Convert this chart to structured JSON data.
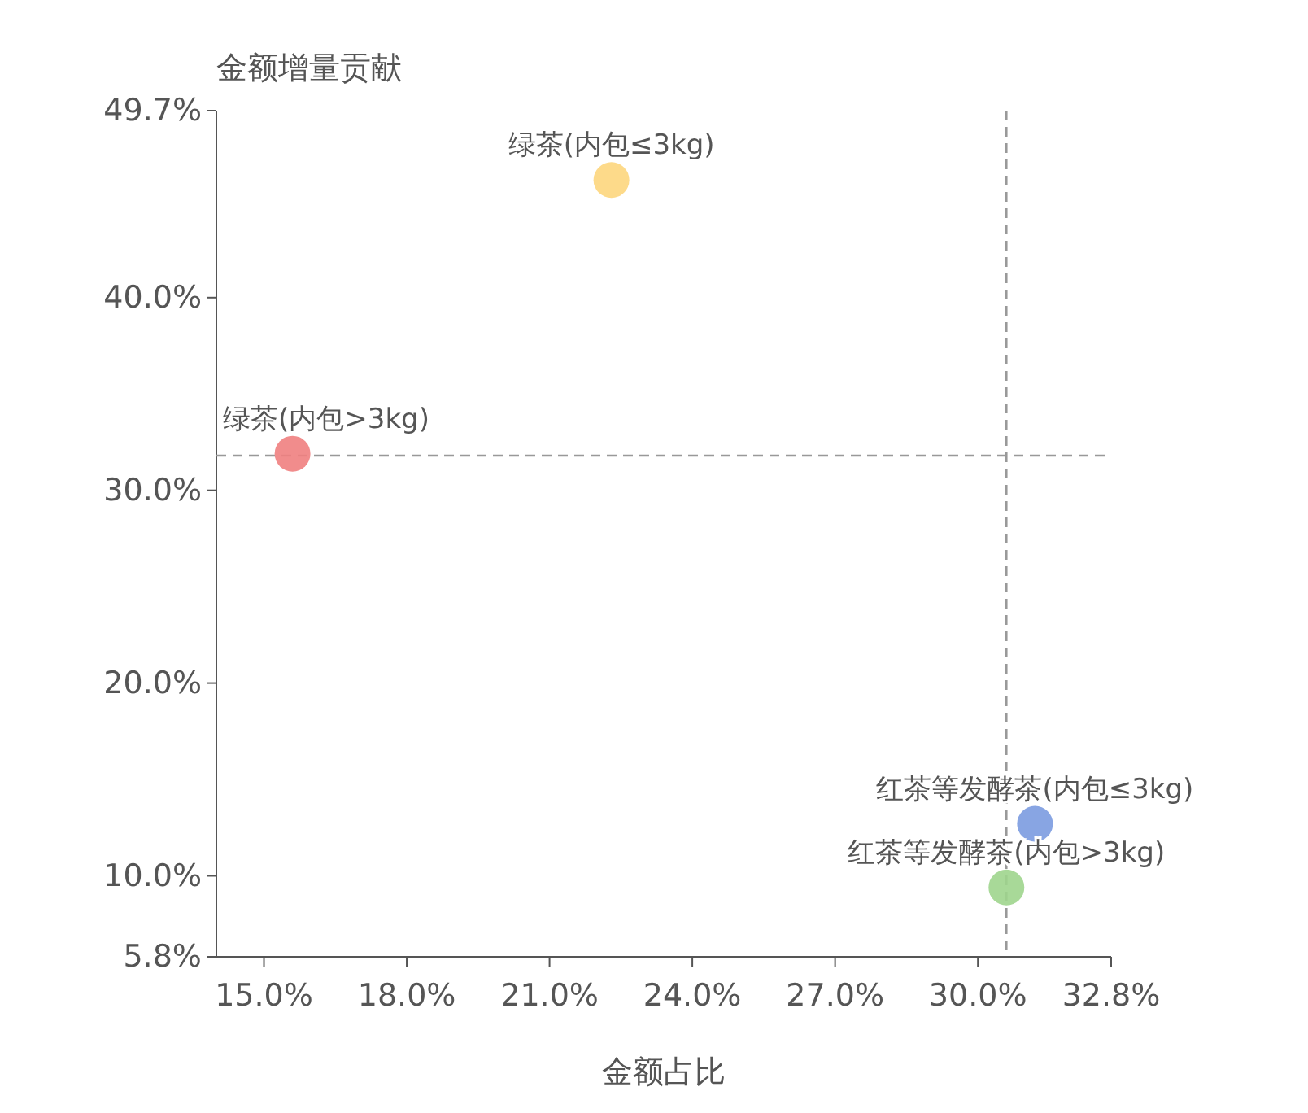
{
  "chart_data": {
    "type": "scatter",
    "xlabel": "金额占比",
    "ylabel": "金额增量贡献",
    "xlim": [
      14,
      32.8
    ],
    "xticks": [
      {
        "value": 15,
        "label": "15.0%"
      },
      {
        "value": 18,
        "label": "18.0%"
      },
      {
        "value": 21,
        "label": "21.0%"
      },
      {
        "value": 24,
        "label": "24.0%"
      },
      {
        "value": 27,
        "label": "27.0%"
      },
      {
        "value": 30,
        "label": "30.0%"
      },
      {
        "value": 32.8,
        "label": "32.8%"
      }
    ],
    "ylim": [
      5.8,
      49.7
    ],
    "yticks": [
      {
        "value": 5.8,
        "label": "5.8%"
      },
      {
        "value": 10,
        "label": "10.0%"
      },
      {
        "value": 20,
        "label": "20.0%"
      },
      {
        "value": 30,
        "label": "30.0%"
      },
      {
        "value": 40,
        "label": "40.0%"
      },
      {
        "value": 49.7,
        "label": "49.7%"
      }
    ],
    "grid": false,
    "legend": false,
    "marker": "circle",
    "series": [
      {
        "name": "绿茶(内包>3kg)",
        "color": "#f08080",
        "x": [
          15.6
        ],
        "values": [
          31.9
        ]
      },
      {
        "name": "绿茶(内包≤3kg)",
        "color": "#fdd67d",
        "x": [
          22.3
        ],
        "values": [
          46.1
        ]
      },
      {
        "name": "红茶等发酵茶(内包≤3kg)",
        "color": "#7b9be0",
        "x": [
          31.2
        ],
        "values": [
          12.7
        ]
      },
      {
        "name": "红茶等发酵茶(内包>3kg)",
        "color": "#9fd58d",
        "x": [
          30.6
        ],
        "values": [
          9.4
        ]
      }
    ],
    "ref_lines": [
      {
        "axis": "x",
        "value": 30.6,
        "color": "#999999",
        "line_style": "dashed"
      },
      {
        "axis": "y",
        "value": 31.8,
        "color": "#999999",
        "line_style": "dashed"
      }
    ]
  }
}
